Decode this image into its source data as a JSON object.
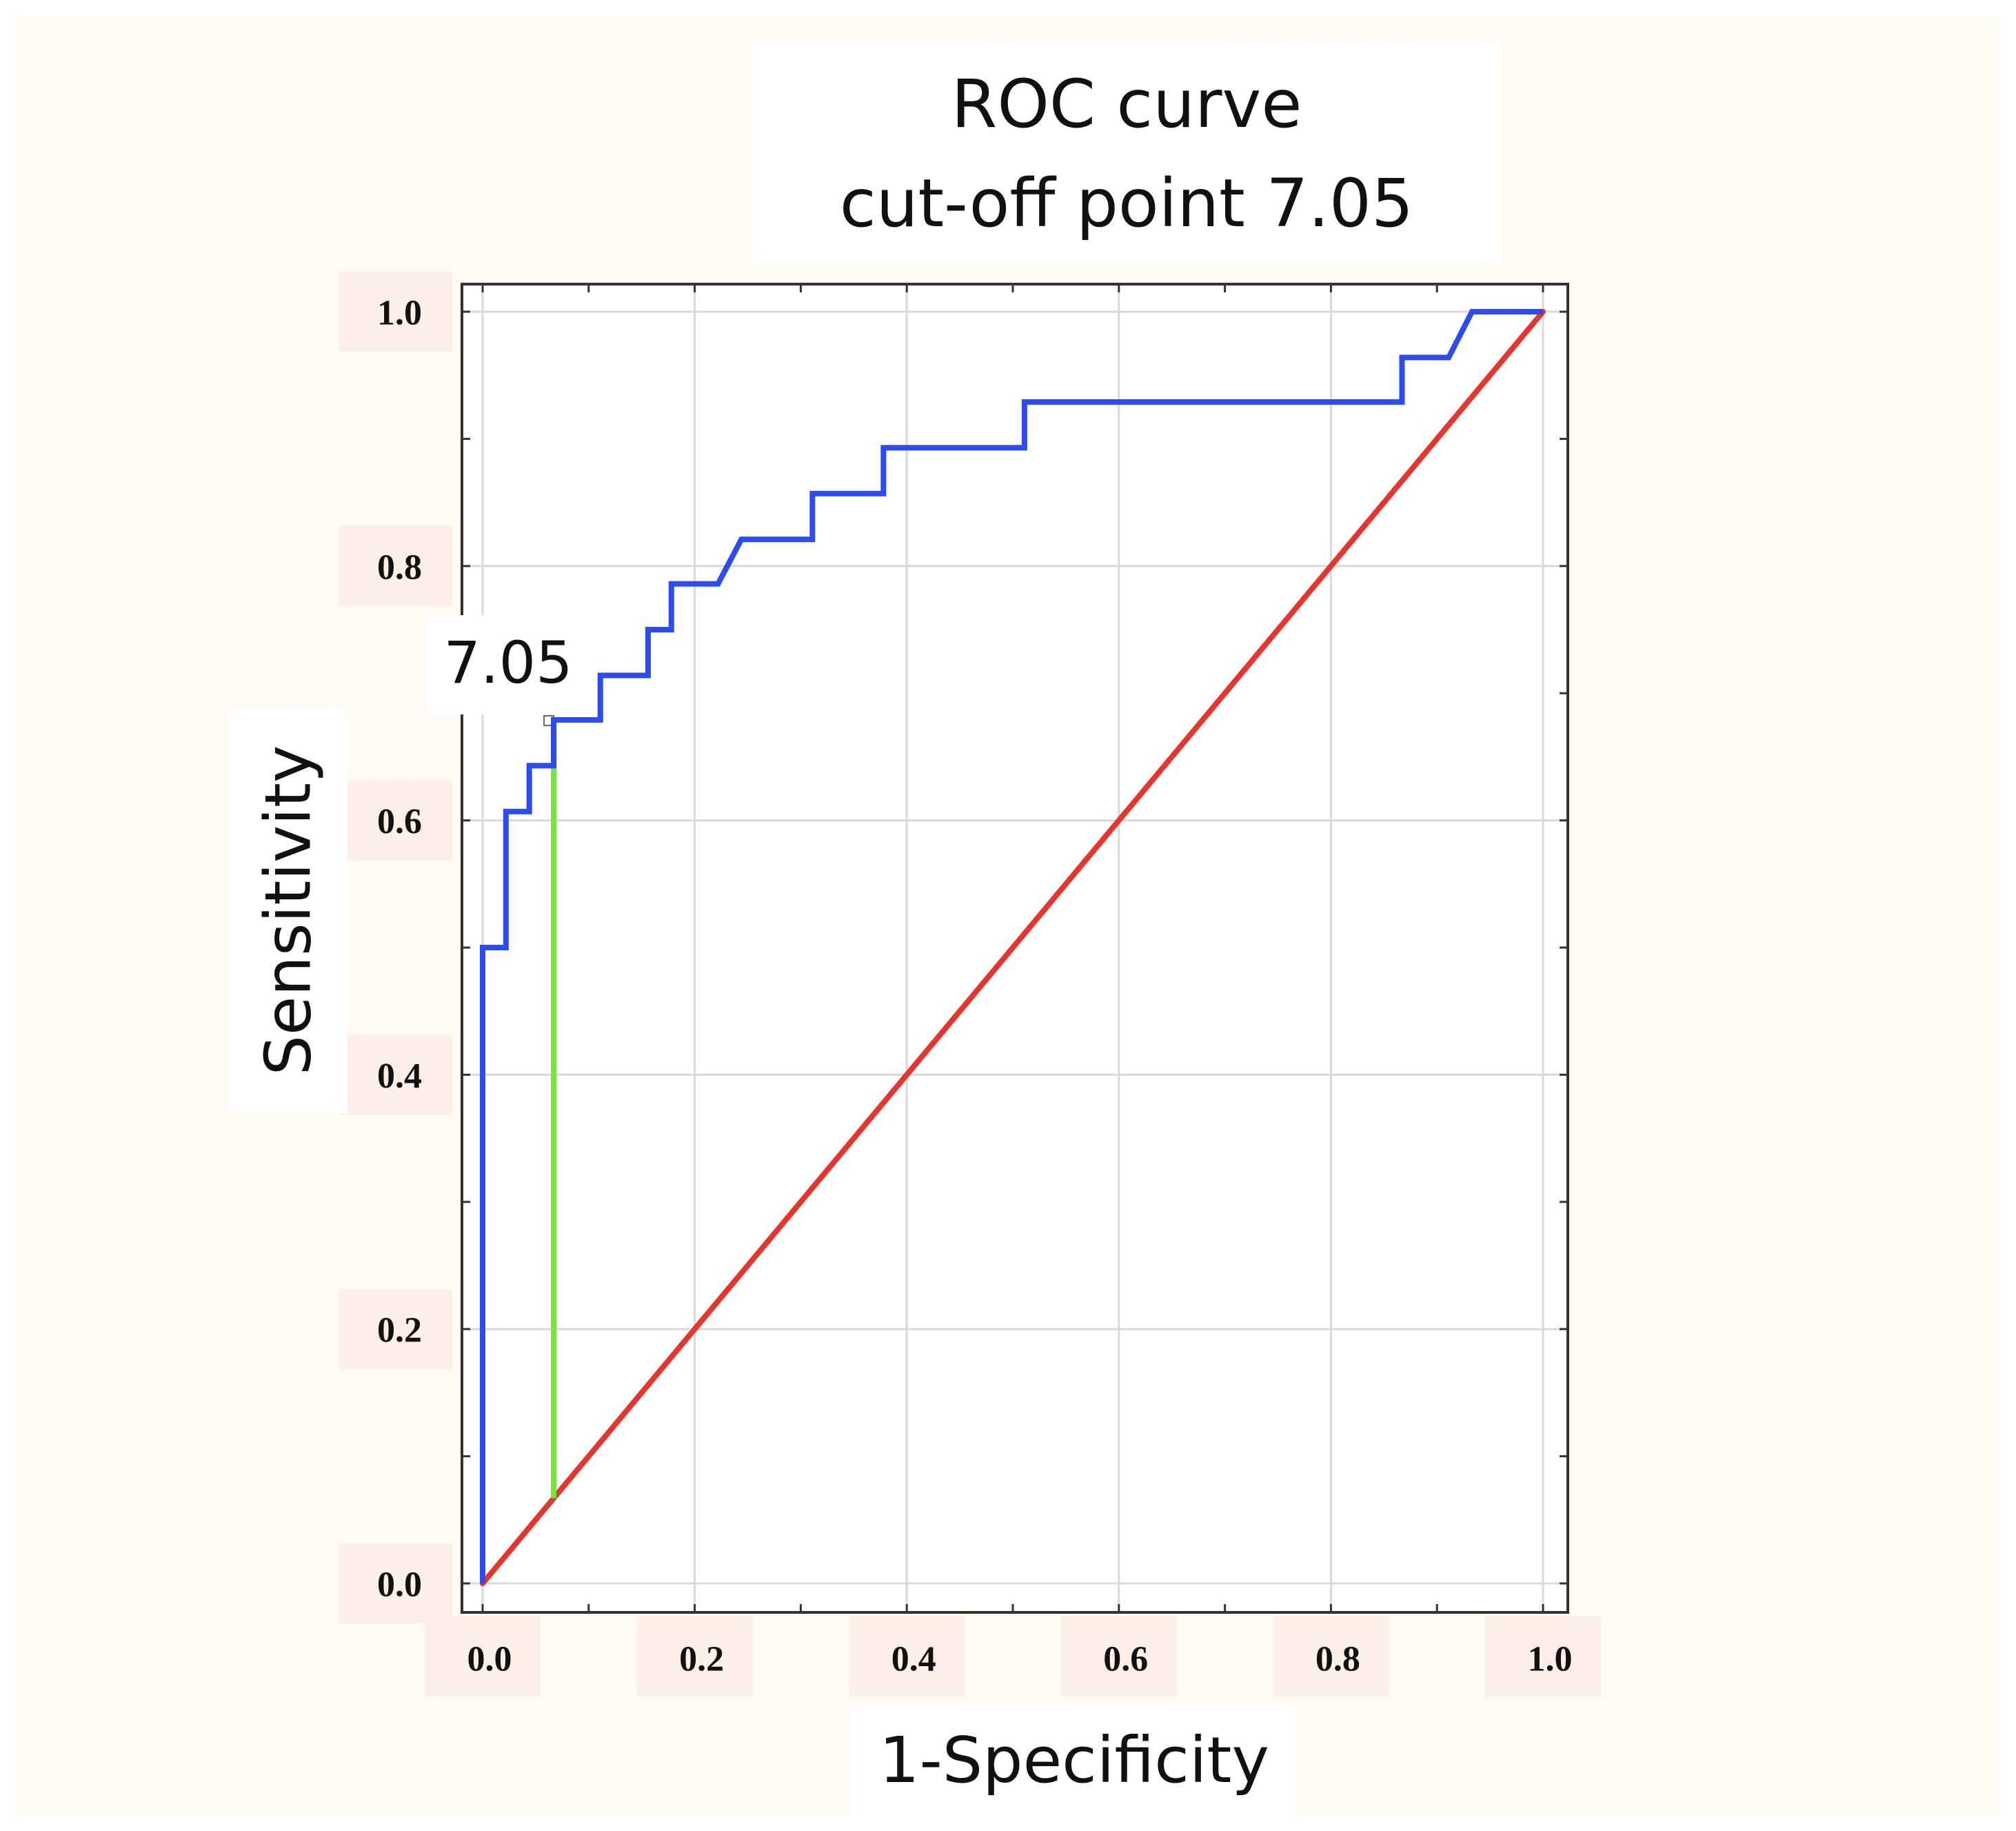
{
  "colors": {
    "background": "#fffbf2",
    "plot_background": "#ffffff",
    "grid": "#d9d9d9",
    "axis": "#333333",
    "roc_curve": "#2b4cf5",
    "reference_line": "#e8342b",
    "cutoff_line": "#73e639",
    "tick_label_bg": "#fbefe7"
  },
  "chart_data": {
    "type": "line",
    "title": "ROC curve",
    "subtitle": "cut-off point 7.05",
    "xlabel": "1-Specificity",
    "ylabel": "Sensitivity",
    "xlim": [
      0.0,
      1.0
    ],
    "ylim": [
      0.0,
      1.0
    ],
    "x_ticks": [
      "0.0",
      "0.2",
      "0.4",
      "0.6",
      "0.8",
      "1.0"
    ],
    "y_ticks": [
      "0.0",
      "0.2",
      "0.4",
      "0.6",
      "0.8",
      "1.0"
    ],
    "grid": true,
    "series": [
      {
        "name": "ROC curve",
        "color": "#2b4cf5",
        "x": [
          0.0,
          0.0,
          0.022,
          0.022,
          0.044,
          0.044,
          0.067,
          0.067,
          0.111,
          0.111,
          0.156,
          0.156,
          0.178,
          0.178,
          0.222,
          0.244,
          0.311,
          0.311,
          0.378,
          0.378,
          0.511,
          0.511,
          0.867,
          0.867,
          0.911,
          0.933,
          1.0
        ],
        "y": [
          0.0,
          0.5,
          0.5,
          0.607,
          0.607,
          0.643,
          0.643,
          0.679,
          0.679,
          0.714,
          0.714,
          0.75,
          0.75,
          0.786,
          0.786,
          0.821,
          0.821,
          0.857,
          0.857,
          0.893,
          0.893,
          0.929,
          0.929,
          0.964,
          0.964,
          1.0,
          1.0
        ]
      },
      {
        "name": "Reference line",
        "color": "#e8342b",
        "x": [
          0.0,
          1.0
        ],
        "y": [
          0.0,
          1.0
        ]
      }
    ],
    "cutoff": {
      "label": "7.05",
      "x": 0.067,
      "y_low": 0.067,
      "y_high": 0.679,
      "color": "#73e639"
    }
  }
}
